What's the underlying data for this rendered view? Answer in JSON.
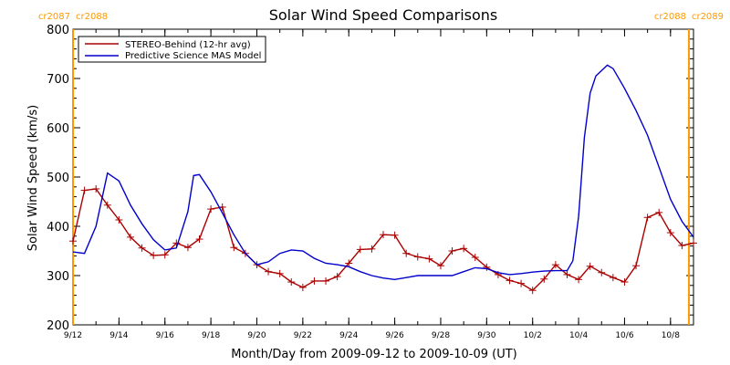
{
  "chart_data": {
    "type": "line",
    "title": "Solar Wind Speed Comparisons",
    "xlabel": "Month/Day from 2009-09-12 to 2009-10-09 (UT)",
    "ylabel": "Solar Wind Speed (km/s)",
    "xlim": [
      "2009-09-12",
      "2009-10-09"
    ],
    "ylim": [
      200,
      800
    ],
    "y_ticks": [
      200,
      300,
      400,
      500,
      600,
      700,
      800
    ],
    "x_tick_labels": [
      "9/12",
      "9/14",
      "9/16",
      "9/18",
      "9/20",
      "9/22",
      "9/24",
      "9/26",
      "9/28",
      "9/30",
      "10/2",
      "10/4",
      "10/6",
      "10/8"
    ],
    "legend_placement": "top-left",
    "grid": false,
    "markers": [
      {
        "date": "2009-09-12",
        "label_left": "cr2087",
        "label_right": "cr2088",
        "color": "#ff9900"
      },
      {
        "date": "2009-10-08.8",
        "label_left": "cr2088",
        "label_right": "cr2089",
        "color": "#ff9900"
      }
    ],
    "series": [
      {
        "name": "STEREO-Behind (12-hr avg)",
        "color": "#aa0000",
        "marker": "plus",
        "points": [
          [
            "2009-09-12 00:00",
            370
          ],
          [
            "2009-09-12 12:00",
            473
          ],
          [
            "2009-09-13 00:00",
            476
          ],
          [
            "2009-09-13 12:00",
            443
          ],
          [
            "2009-09-14 00:00",
            413
          ],
          [
            "2009-09-14 12:00",
            378
          ],
          [
            "2009-09-15 00:00",
            356
          ],
          [
            "2009-09-15 12:00",
            341
          ],
          [
            "2009-09-16 00:00",
            342
          ],
          [
            "2009-09-16 12:00",
            366
          ],
          [
            "2009-09-17 00:00",
            357
          ],
          [
            "2009-09-17 12:00",
            374
          ],
          [
            "2009-09-18 00:00",
            435
          ],
          [
            "2009-09-18 12:00",
            439
          ],
          [
            "2009-09-19 00:00",
            357
          ],
          [
            "2009-09-19 12:00",
            345
          ],
          [
            "2009-09-20 00:00",
            322
          ],
          [
            "2009-09-20 12:00",
            308
          ],
          [
            "2009-09-21 00:00",
            304
          ],
          [
            "2009-09-21 12:00",
            287
          ],
          [
            "2009-09-22 00:00",
            276
          ],
          [
            "2009-09-22 12:00",
            289
          ],
          [
            "2009-09-23 00:00",
            289
          ],
          [
            "2009-09-23 12:00",
            298
          ],
          [
            "2009-09-24 00:00",
            325
          ],
          [
            "2009-09-24 12:00",
            353
          ],
          [
            "2009-09-25 00:00",
            354
          ],
          [
            "2009-09-25 12:00",
            383
          ],
          [
            "2009-09-26 00:00",
            382
          ],
          [
            "2009-09-26 12:00",
            345
          ],
          [
            "2009-09-27 00:00",
            338
          ],
          [
            "2009-09-27 12:00",
            334
          ],
          [
            "2009-09-28 00:00",
            320
          ],
          [
            "2009-09-28 12:00",
            350
          ],
          [
            "2009-09-29 00:00",
            355
          ],
          [
            "2009-09-29 12:00",
            337
          ],
          [
            "2009-09-30 00:00",
            317
          ],
          [
            "2009-09-30 12:00",
            302
          ],
          [
            "2009-10-01 00:00",
            290
          ],
          [
            "2009-10-01 12:00",
            284
          ],
          [
            "2009-10-02 00:00",
            270
          ],
          [
            "2009-10-02 12:00",
            293
          ],
          [
            "2009-10-03 00:00",
            322
          ],
          [
            "2009-10-03 12:00",
            302
          ],
          [
            "2009-10-04 00:00",
            292
          ],
          [
            "2009-10-04 12:00",
            319
          ],
          [
            "2009-10-05 00:00",
            306
          ],
          [
            "2009-10-05 12:00",
            296
          ],
          [
            "2009-10-06 00:00",
            287
          ],
          [
            "2009-10-06 12:00",
            320
          ],
          [
            "2009-10-07 00:00",
            418
          ],
          [
            "2009-10-07 12:00",
            428
          ],
          [
            "2009-10-08 00:00",
            387
          ],
          [
            "2009-10-08 12:00",
            361
          ],
          [
            "2009-10-09 00:00",
            366
          ]
        ]
      },
      {
        "name": "Predictive Science MAS Model",
        "color": "#0000cc",
        "marker": "none",
        "points": [
          [
            "2009-09-12 00:00",
            348
          ],
          [
            "2009-09-12 12:00",
            345
          ],
          [
            "2009-09-13 00:00",
            400
          ],
          [
            "2009-09-13 12:00",
            508
          ],
          [
            "2009-09-14 00:00",
            492
          ],
          [
            "2009-09-14 12:00",
            443
          ],
          [
            "2009-09-15 00:00",
            405
          ],
          [
            "2009-09-15 12:00",
            373
          ],
          [
            "2009-09-16 00:00",
            352
          ],
          [
            "2009-09-16 12:00",
            356
          ],
          [
            "2009-09-17 00:00",
            430
          ],
          [
            "2009-09-17 06:00",
            503
          ],
          [
            "2009-09-17 12:00",
            505
          ],
          [
            "2009-09-18 00:00",
            470
          ],
          [
            "2009-09-18 12:00",
            427
          ],
          [
            "2009-09-19 00:00",
            383
          ],
          [
            "2009-09-19 12:00",
            345
          ],
          [
            "2009-09-20 00:00",
            322
          ],
          [
            "2009-09-20 12:00",
            328
          ],
          [
            "2009-09-21 00:00",
            345
          ],
          [
            "2009-09-21 12:00",
            352
          ],
          [
            "2009-09-22 00:00",
            350
          ],
          [
            "2009-09-22 12:00",
            335
          ],
          [
            "2009-09-23 00:00",
            325
          ],
          [
            "2009-09-23 12:00",
            322
          ],
          [
            "2009-09-24 00:00",
            318
          ],
          [
            "2009-09-24 12:00",
            308
          ],
          [
            "2009-09-25 00:00",
            300
          ],
          [
            "2009-09-25 12:00",
            295
          ],
          [
            "2009-09-26 00:00",
            292
          ],
          [
            "2009-09-26 12:00",
            296
          ],
          [
            "2009-09-27 00:00",
            300
          ],
          [
            "2009-09-27 12:00",
            300
          ],
          [
            "2009-09-28 00:00",
            300
          ],
          [
            "2009-09-28 12:00",
            300
          ],
          [
            "2009-09-29 00:00",
            308
          ],
          [
            "2009-09-29 12:00",
            316
          ],
          [
            "2009-09-30 00:00",
            314
          ],
          [
            "2009-09-30 12:00",
            306
          ],
          [
            "2009-10-01 00:00",
            302
          ],
          [
            "2009-10-01 12:00",
            304
          ],
          [
            "2009-10-02 00:00",
            307
          ],
          [
            "2009-10-02 12:00",
            309
          ],
          [
            "2009-10-03 00:00",
            310
          ],
          [
            "2009-10-03 12:00",
            310
          ],
          [
            "2009-10-03 18:00",
            330
          ],
          [
            "2009-10-04 00:00",
            420
          ],
          [
            "2009-10-04 06:00",
            580
          ],
          [
            "2009-10-04 12:00",
            670
          ],
          [
            "2009-10-04 18:00",
            705
          ],
          [
            "2009-10-05 06:00",
            727
          ],
          [
            "2009-10-05 12:00",
            720
          ],
          [
            "2009-10-06 00:00",
            680
          ],
          [
            "2009-10-06 12:00",
            635
          ],
          [
            "2009-10-07 00:00",
            585
          ],
          [
            "2009-10-07 12:00",
            520
          ],
          [
            "2009-10-08 00:00",
            455
          ],
          [
            "2009-10-08 12:00",
            410
          ],
          [
            "2009-10-09 00:00",
            378
          ]
        ]
      }
    ]
  }
}
